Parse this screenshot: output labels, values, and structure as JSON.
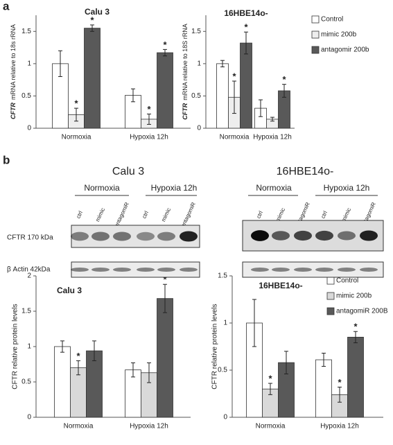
{
  "panel_labels": [
    "a",
    "b"
  ],
  "chart_data": [
    {
      "type": "bar",
      "title": "Calu 3",
      "ylabel": {
        "italic": "CFTR",
        "rest": "mRNA relative to 18s rRNA"
      },
      "categories": [
        "Normoxia",
        "Hypoxia 12h"
      ],
      "series": [
        {
          "color": "#ffffff",
          "values": [
            1.0,
            0.51
          ],
          "errors": [
            0.2,
            0.1
          ],
          "significance": [
            null,
            null
          ]
        },
        {
          "color": "#eeeeee",
          "values": [
            0.21,
            0.14
          ],
          "errors": [
            0.1,
            0.08
          ],
          "significance": [
            "*",
            "*"
          ]
        },
        {
          "color": "#595959",
          "values": [
            1.55,
            1.17
          ],
          "errors": [
            0.05,
            0.05
          ],
          "significance": [
            "*",
            "*"
          ]
        }
      ],
      "ylim": [
        0,
        1.75
      ],
      "yticks": [
        0,
        0.5,
        1,
        1.5
      ]
    },
    {
      "type": "bar",
      "title": "16HBE14o-",
      "ylabel": {
        "italic": "CFTR",
        "rest": "mRNA relative to 18S rRNA"
      },
      "categories": [
        "Normoxia",
        "Hypoxia 12h"
      ],
      "series": [
        {
          "name": "Control",
          "color": "#ffffff",
          "values": [
            1.0,
            0.31
          ],
          "errors": [
            0.05,
            0.13
          ],
          "significance": [
            null,
            null
          ]
        },
        {
          "name": "mimic 200b",
          "color": "#eeeeee",
          "values": [
            0.48,
            0.14
          ],
          "errors": [
            0.25,
            0.03
          ],
          "significance": [
            "*",
            null
          ]
        },
        {
          "name": "antagomir 200b",
          "color": "#595959",
          "values": [
            1.32,
            0.58
          ],
          "errors": [
            0.17,
            0.1
          ],
          "significance": [
            "*",
            "*"
          ]
        }
      ],
      "ylim": [
        0,
        1.75
      ],
      "yticks": [
        0,
        0.5,
        1,
        1.5
      ],
      "legend": "right"
    },
    {
      "type": "bar",
      "title": "Calu 3",
      "ylabel": "CFTR relative protein levels",
      "categories": [
        "Normoxia",
        "Hypoxia 12h"
      ],
      "series": [
        {
          "color": "#ffffff",
          "values": [
            1.0,
            0.67
          ],
          "errors": [
            0.08,
            0.1
          ],
          "significance": [
            null,
            null
          ]
        },
        {
          "color": "#d9d9d9",
          "values": [
            0.7,
            0.63
          ],
          "errors": [
            0.1,
            0.14
          ],
          "significance": [
            "*",
            null
          ]
        },
        {
          "color": "#595959",
          "values": [
            0.94,
            1.68
          ],
          "errors": [
            0.14,
            0.2
          ],
          "significance": [
            null,
            "*"
          ]
        }
      ],
      "ylim": [
        0,
        2
      ],
      "yticks": [
        0,
        0.5,
        1,
        1.5,
        2
      ]
    },
    {
      "type": "bar",
      "title": "16HBE14o-",
      "ylabel": "CFTR relative protein levels",
      "categories": [
        "Normoxia",
        "Hypoxia 12h"
      ],
      "series": [
        {
          "name": "Control",
          "color": "#ffffff",
          "values": [
            1.0,
            0.61
          ],
          "errors": [
            0.25,
            0.07
          ],
          "significance": [
            null,
            null
          ]
        },
        {
          "name": "mimic 200b",
          "color": "#d9d9d9",
          "values": [
            0.3,
            0.24
          ],
          "errors": [
            0.06,
            0.08
          ],
          "significance": [
            "*",
            "*"
          ]
        },
        {
          "name": "antagomiR 200B",
          "color": "#595959",
          "values": [
            0.58,
            0.85
          ],
          "errors": [
            0.12,
            0.06
          ],
          "significance": [
            null,
            "*"
          ]
        }
      ],
      "ylim": [
        0,
        1.5
      ],
      "yticks": [
        0,
        0.5,
        1,
        1.5
      ],
      "legend": "right"
    }
  ],
  "blots": {
    "rows": [
      "CFTR 170 kDa",
      "β Actin 42kDa"
    ],
    "panels": [
      {
        "title": "Calu 3",
        "groups": [
          "Normoxia",
          "Hypoxia 12h"
        ],
        "lanes": [
          "ctrl",
          "mimic",
          "antagomiR",
          "ctrl",
          "mimic",
          "antagomiR"
        ]
      },
      {
        "title": "16HBE14o-",
        "groups": [
          "Normoxia",
          "Hypoxia 12h"
        ],
        "lanes": [
          "ctrl",
          "mimic",
          "antagomiR",
          "ctrl",
          "mimic",
          "antagomiR"
        ]
      }
    ]
  }
}
